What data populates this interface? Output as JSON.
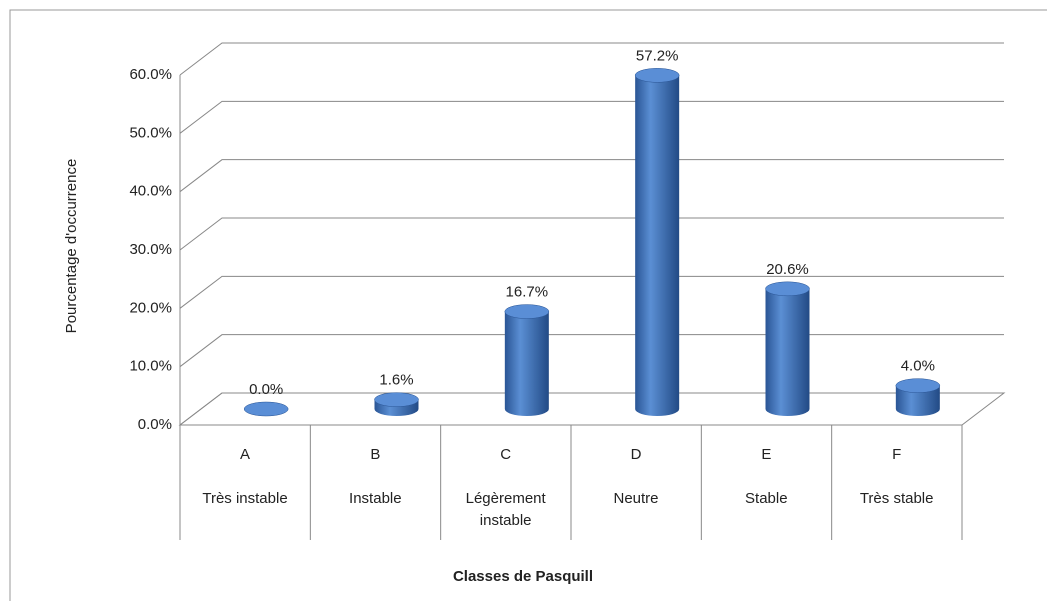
{
  "chart_data": {
    "type": "bar3d",
    "y_label": "Pourcentage d'occurrence",
    "x_label": "Classes de Pasquill",
    "categories": [
      "A",
      "B",
      "C",
      "D",
      "E",
      "F"
    ],
    "subcategories": [
      "Très instable",
      "Instable",
      "Légèrement instable",
      "Neutre",
      "Stable",
      "Très stable"
    ],
    "values": [
      0.0,
      1.6,
      16.7,
      57.2,
      20.6,
      4.0
    ],
    "value_labels": [
      "0.0%",
      "1.6%",
      "16.7%",
      "57.2%",
      "20.6%",
      "4.0%"
    ],
    "color": "#3d6fb6",
    "ylim": [
      0,
      60
    ],
    "yticks": [
      {
        "value": 0,
        "label": "0.0%"
      },
      {
        "value": 10,
        "label": "10.0%"
      },
      {
        "value": 20,
        "label": "20.0%"
      },
      {
        "value": 30,
        "label": "30.0%"
      },
      {
        "value": 40,
        "label": "40.0%"
      },
      {
        "value": 50,
        "label": "50.0%"
      },
      {
        "value": 60,
        "label": "60.0%"
      }
    ],
    "grid": true
  }
}
